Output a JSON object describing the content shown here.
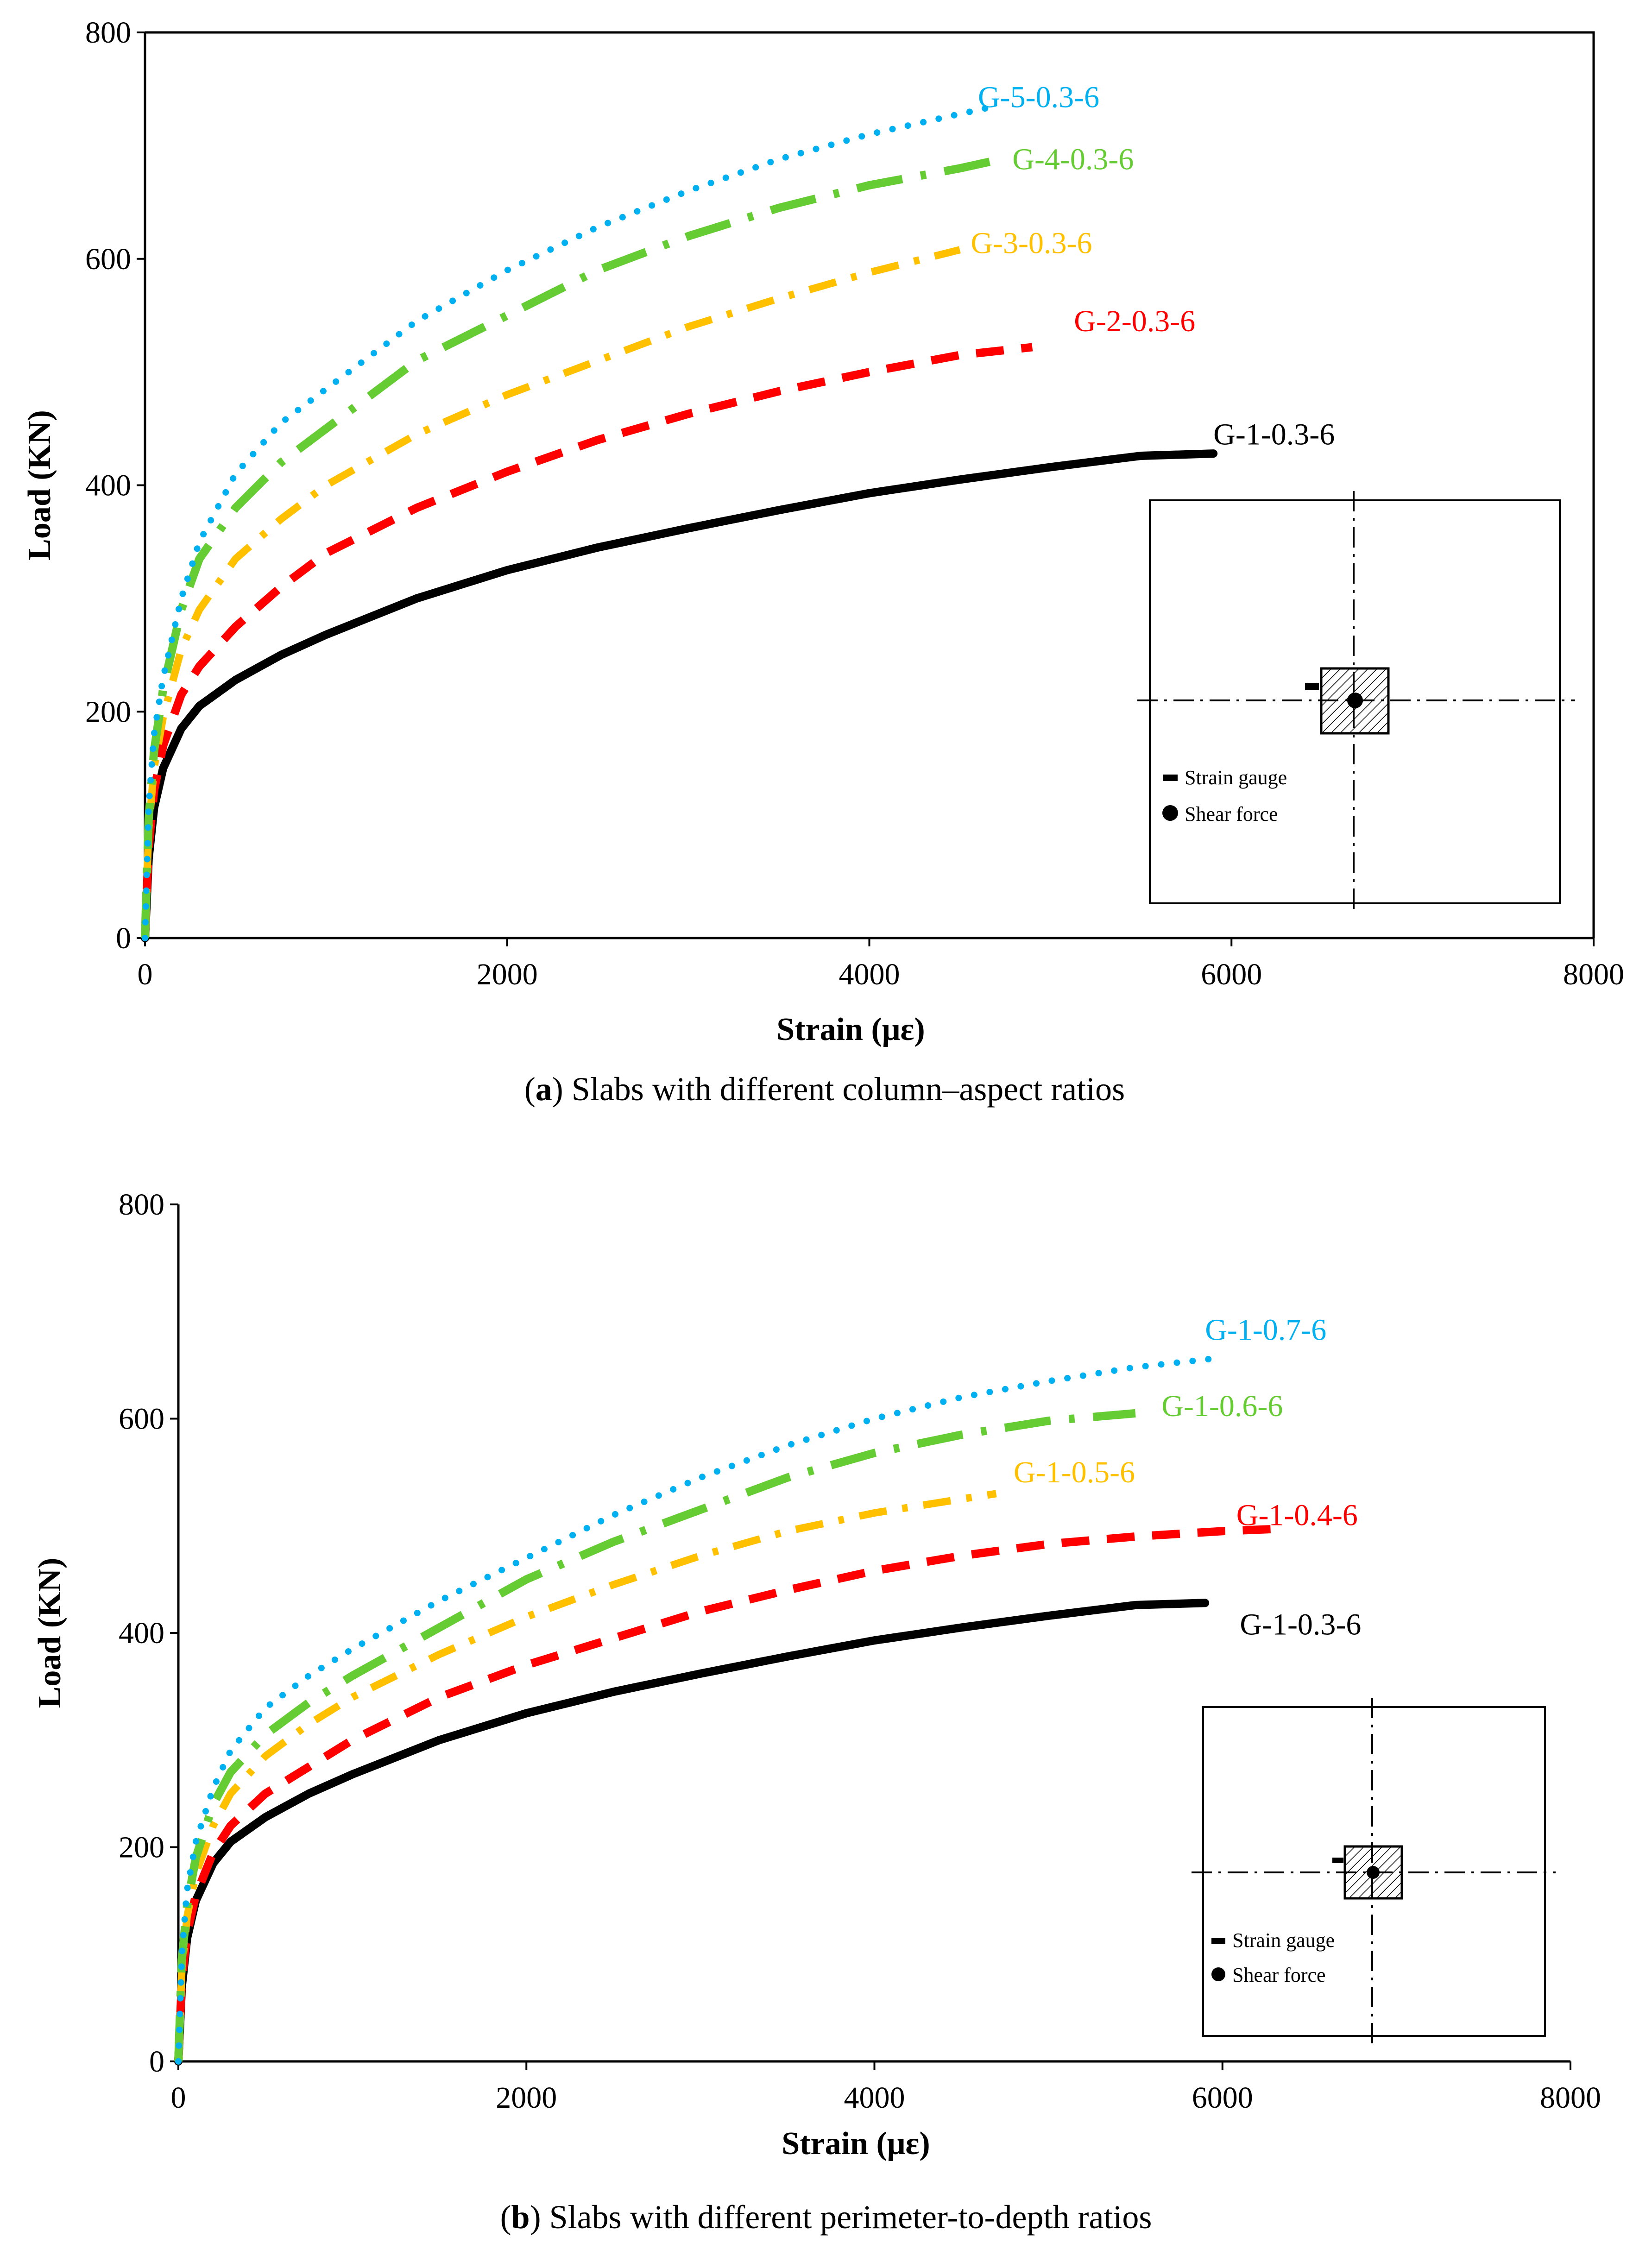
{
  "chart_data": [
    {
      "id": "a",
      "type": "line",
      "title": "",
      "xlabel": "Strain (με)",
      "ylabel": "Load (KN)",
      "xlim": [
        0,
        8000
      ],
      "ylim": [
        0,
        800
      ],
      "xticks": [
        0,
        2000,
        4000,
        6000,
        8000
      ],
      "yticks": [
        0,
        200,
        400,
        600,
        800
      ],
      "grid": false,
      "legend": "inline labels",
      "caption": {
        "prefix": "(",
        "letter": "a",
        "text": ") Slabs with different column–aspect ratios"
      },
      "inset": {
        "strain_label": "Strain gauge",
        "shear_label": "Shear force"
      },
      "series": [
        {
          "name": "G-1-0.3-6",
          "color": "#000000",
          "style": "solid",
          "label_at": [
            5900,
            445
          ],
          "x": [
            0,
            20,
            50,
            100,
            200,
            300,
            500,
            750,
            1000,
            1500,
            2000,
            2500,
            3000,
            3500,
            4000,
            4500,
            5000,
            5500,
            5900
          ],
          "y": [
            0,
            70,
            115,
            150,
            185,
            205,
            228,
            250,
            268,
            300,
            325,
            345,
            362,
            378,
            393,
            405,
            416,
            426,
            428
          ]
        },
        {
          "name": "G-2-0.3-6",
          "color": "#ff0000",
          "style": "dash",
          "label_at": [
            5130,
            545
          ],
          "x": [
            0,
            20,
            50,
            100,
            200,
            300,
            500,
            750,
            1000,
            1500,
            2000,
            2500,
            3000,
            3500,
            4000,
            4500,
            4900
          ],
          "y": [
            0,
            80,
            130,
            170,
            215,
            240,
            275,
            310,
            340,
            380,
            412,
            440,
            463,
            483,
            500,
            515,
            522
          ]
        },
        {
          "name": "G-3-0.3-6",
          "color": "#ffc000",
          "style": "dashdot",
          "label_at": [
            4560,
            614
          ],
          "x": [
            0,
            20,
            50,
            100,
            200,
            300,
            500,
            750,
            1000,
            1500,
            2000,
            2500,
            3000,
            3500,
            4000,
            4500
          ],
          "y": [
            0,
            95,
            150,
            195,
            255,
            290,
            335,
            370,
            400,
            445,
            480,
            510,
            540,
            565,
            588,
            608
          ]
        },
        {
          "name": "G-4-0.3-6",
          "color": "#66cc33",
          "style": "longdashdot",
          "label_at": [
            4790,
            688
          ],
          "x": [
            0,
            20,
            50,
            100,
            200,
            300,
            500,
            750,
            1000,
            1500,
            2000,
            2500,
            3000,
            3500,
            4000,
            4500,
            4700
          ],
          "y": [
            0,
            105,
            165,
            220,
            290,
            335,
            380,
            420,
            450,
            510,
            550,
            590,
            620,
            645,
            665,
            680,
            687
          ]
        },
        {
          "name": "G-5-0.3-6",
          "color": "#00b0f0",
          "style": "dot",
          "label_at": [
            4600,
            743
          ],
          "x": [
            0,
            20,
            50,
            100,
            200,
            300,
            500,
            750,
            1000,
            1500,
            2000,
            2500,
            3000,
            3500,
            4000,
            4500,
            4700
          ],
          "y": [
            0,
            115,
            180,
            230,
            300,
            350,
            410,
            455,
            485,
            545,
            590,
            628,
            660,
            688,
            710,
            728,
            735
          ]
        }
      ]
    },
    {
      "id": "b",
      "type": "line",
      "title": "",
      "xlabel": "Strain (με)",
      "ylabel": "Load (KN)",
      "xlim": [
        0,
        8000
      ],
      "ylim": [
        0,
        800
      ],
      "xticks": [
        0,
        2000,
        4000,
        6000,
        8000
      ],
      "yticks": [
        0,
        200,
        400,
        600,
        800
      ],
      "grid": false,
      "legend": "inline labels",
      "caption": {
        "prefix": "(",
        "letter": "b",
        "text": ") Slabs with different perimeter-to-depth ratios"
      },
      "inset": {
        "strain_label": "Strain gauge",
        "shear_label": "Shear force"
      },
      "series": [
        {
          "name": "G-1-0.3-6",
          "color": "#000000",
          "style": "solid",
          "label_at": [
            6100,
            408
          ],
          "x": [
            0,
            20,
            50,
            100,
            200,
            300,
            500,
            750,
            1000,
            1500,
            2000,
            2500,
            3000,
            3500,
            4000,
            4500,
            5000,
            5500,
            5900
          ],
          "y": [
            0,
            70,
            115,
            150,
            185,
            205,
            228,
            250,
            268,
            300,
            325,
            345,
            362,
            378,
            393,
            405,
            416,
            426,
            428
          ]
        },
        {
          "name": "G-1-0.4-6",
          "color": "#ff0000",
          "style": "dash",
          "label_at": [
            6080,
            510
          ],
          "x": [
            0,
            20,
            50,
            100,
            200,
            300,
            500,
            750,
            1000,
            1500,
            2000,
            2500,
            3000,
            3500,
            4000,
            4500,
            5000,
            5500,
            6000,
            6300
          ],
          "y": [
            0,
            75,
            120,
            155,
            195,
            220,
            250,
            275,
            300,
            340,
            370,
            395,
            420,
            440,
            458,
            472,
            483,
            490,
            495,
            497
          ]
        },
        {
          "name": "G-1-0.5-6",
          "color": "#ffc000",
          "style": "dashdot",
          "label_at": [
            4800,
            550
          ],
          "x": [
            0,
            20,
            50,
            100,
            200,
            300,
            500,
            750,
            1000,
            1500,
            2000,
            2500,
            3000,
            3500,
            4000,
            4500,
            4700
          ],
          "y": [
            0,
            85,
            135,
            175,
            220,
            250,
            285,
            315,
            340,
            380,
            415,
            445,
            472,
            495,
            512,
            525,
            530
          ]
        },
        {
          "name": "G-1-0.6-6",
          "color": "#66cc33",
          "style": "longdashdot",
          "label_at": [
            5650,
            612
          ],
          "x": [
            0,
            20,
            50,
            100,
            200,
            300,
            500,
            750,
            1000,
            1500,
            2000,
            2500,
            3000,
            3500,
            4000,
            4500,
            5000,
            5500
          ],
          "y": [
            0,
            95,
            145,
            190,
            240,
            270,
            305,
            335,
            360,
            405,
            450,
            485,
            515,
            545,
            568,
            585,
            598,
            605
          ]
        },
        {
          "name": "G-1-0.7-6",
          "color": "#00b0f0",
          "style": "dot",
          "label_at": [
            5900,
            683
          ],
          "x": [
            0,
            20,
            50,
            100,
            200,
            300,
            500,
            750,
            1000,
            1500,
            2000,
            2500,
            3000,
            3500,
            4000,
            4500,
            5000,
            5500,
            6000
          ],
          "y": [
            0,
            100,
            160,
            205,
            255,
            290,
            330,
            360,
            385,
            430,
            470,
            510,
            545,
            575,
            600,
            620,
            635,
            648,
            657
          ]
        }
      ]
    }
  ]
}
